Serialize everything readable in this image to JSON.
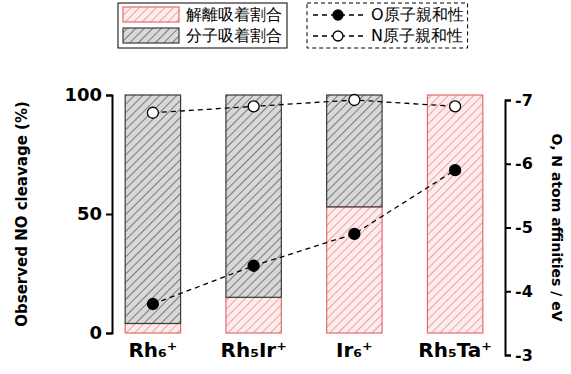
{
  "chart_data": {
    "type": "bar",
    "stacked": true,
    "categories": [
      "Rh₆⁺",
      "Rh₅Ir⁺",
      "Ir₆⁺",
      "Rh₅Ta⁺"
    ],
    "series": [
      {
        "name": "解離吸着割合",
        "color": "#e8696b",
        "values": [
          4,
          15,
          53,
          100
        ]
      },
      {
        "name": "分子吸着割合",
        "color": "#3a3a3a",
        "values": [
          96,
          85,
          47,
          0
        ]
      },
      {
        "name": "O原子親和性",
        "type": "line",
        "axis": "y2",
        "color": "#000000",
        "marker": "circle",
        "line_style": "dashed",
        "values": [
          -3.8,
          -4.4,
          -4.9,
          -5.9
        ]
      },
      {
        "name": "N原子親和性",
        "type": "line",
        "axis": "y2",
        "color": "#000000",
        "marker": "open_circle",
        "line_style": "dashed",
        "values": [
          -6.8,
          -6.9,
          -7,
          -6.9
        ]
      }
    ],
    "ylabel": "Observed NO cleavage (%)",
    "y2label": "O, N atom affinities / eV",
    "ylim": [
      0,
      100
    ],
    "yticks": [
      0,
      50,
      100
    ],
    "y2lim": [
      -3,
      -7
    ],
    "y2ticks": [
      -3,
      -4,
      -5,
      -6,
      -7
    ],
    "legend": "top",
    "grid": false
  }
}
